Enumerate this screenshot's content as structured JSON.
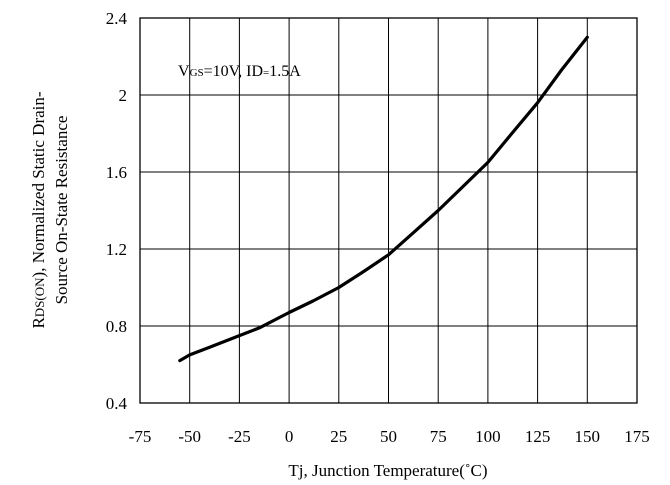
{
  "chart_data": {
    "type": "line",
    "title": "",
    "xlabel": "Tj, Junction Temperature(˚C)",
    "ylabel_line1": "RDS(ON), Normalized Static Drain-",
    "ylabel_line2": "Source On-State Resistance",
    "annotation": "VGS=10V, ID=1.5A",
    "xlim": [
      -75,
      175
    ],
    "ylim": [
      0.4,
      2.4
    ],
    "x_ticks": [
      "-75",
      "-50",
      "-25",
      "0",
      "25",
      "50",
      "75",
      "100",
      "125",
      "150",
      "175"
    ],
    "y_ticks": [
      "0.4",
      "0.8",
      "1.2",
      "1.6",
      "2",
      "2.4"
    ],
    "grid": true,
    "series": [
      {
        "x": [
          -55,
          -50,
          -40,
          -25,
          -15,
          0,
          12,
          25,
          37,
          50,
          62,
          75,
          87,
          100,
          112,
          125,
          137,
          150
        ],
        "y": [
          0.62,
          0.65,
          0.69,
          0.75,
          0.79,
          0.87,
          0.93,
          1.0,
          1.08,
          1.17,
          1.28,
          1.4,
          1.52,
          1.65,
          1.8,
          1.96,
          2.13,
          2.3
        ]
      }
    ]
  }
}
